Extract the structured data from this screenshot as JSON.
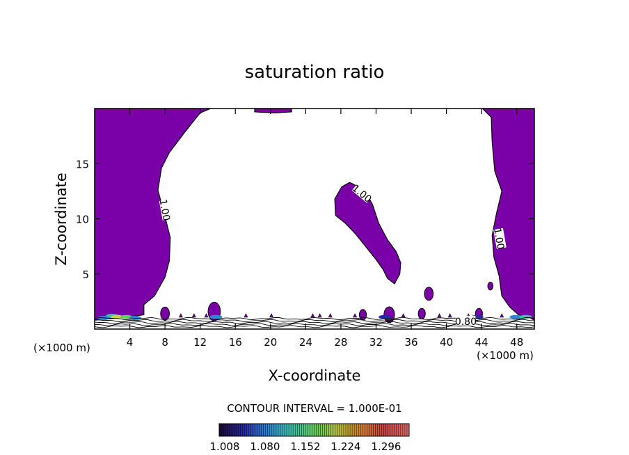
{
  "chart_data": {
    "type": "contour",
    "title": "saturation ratio",
    "xlabel": "X-coordinate",
    "ylabel": "Z-coordinate",
    "x_unit_left": "(×1000 m)",
    "x_unit_right": "(×1000 m)",
    "xlim": [
      0,
      50
    ],
    "ylim": [
      0,
      20
    ],
    "x_ticks": [
      4,
      8,
      12,
      16,
      20,
      24,
      28,
      32,
      36,
      40,
      44,
      48
    ],
    "y_ticks": [
      5,
      10,
      15
    ],
    "contour_labels": [
      {
        "text": "1.00",
        "x": 8.0,
        "y": 10.8
      },
      {
        "text": "1.00",
        "x": 30.4,
        "y": 12.3
      },
      {
        "text": "1.00",
        "x": 46.0,
        "y": 8.2
      },
      {
        "text": "0.80",
        "x": 42.2,
        "y": 0.7
      }
    ],
    "contour_interval_text": "CONTOUR INTERVAL = 1.000E-01",
    "colorbar": {
      "tick_labels": [
        "1.008",
        "1.080",
        "1.152",
        "1.224",
        "1.296"
      ],
      "colors": [
        "#1a0a3a",
        "#2a2aa0",
        "#2e86d6",
        "#3fc0b0",
        "#5fd060",
        "#b8c040",
        "#d08030",
        "#c84040",
        "#e07070"
      ]
    },
    "fill_color": "#7a00a8",
    "supersaturated_regions": [
      {
        "name": "left",
        "points": [
          [
            0,
            0.8
          ],
          [
            0,
            20
          ],
          [
            13.2,
            20
          ],
          [
            12,
            19.6
          ],
          [
            10.2,
            17.8
          ],
          [
            8.5,
            16
          ],
          [
            7.6,
            14.6
          ],
          [
            7.2,
            12.6
          ],
          [
            7.9,
            10.5
          ],
          [
            8.6,
            8.3
          ],
          [
            8.5,
            6.2
          ],
          [
            8,
            4.7
          ],
          [
            6.8,
            3
          ],
          [
            5.6,
            2.2
          ],
          [
            5.6,
            1.3
          ],
          [
            4,
            1.1
          ]
        ]
      },
      {
        "name": "right",
        "points": [
          [
            50,
            0.8
          ],
          [
            50,
            20
          ],
          [
            44.1,
            20
          ],
          [
            45.1,
            19.2
          ],
          [
            45.2,
            17
          ],
          [
            45.5,
            14.3
          ],
          [
            46.3,
            12.5
          ],
          [
            45.7,
            10.5
          ],
          [
            45.2,
            8.5
          ],
          [
            45.4,
            6.5
          ],
          [
            46,
            4.8
          ],
          [
            46.3,
            3
          ],
          [
            47.2,
            2
          ],
          [
            48.2,
            1.3
          ],
          [
            49.3,
            1.1
          ]
        ]
      },
      {
        "name": "center",
        "points": [
          [
            30,
            12.9
          ],
          [
            30.9,
            12.3
          ],
          [
            31.6,
            11.3
          ],
          [
            32.3,
            9.6
          ],
          [
            33.3,
            8.1
          ],
          [
            34.3,
            7
          ],
          [
            34.8,
            6
          ],
          [
            34.7,
            5
          ],
          [
            34.1,
            4.1
          ],
          [
            33.3,
            4.6
          ],
          [
            32.8,
            5.4
          ],
          [
            32,
            6.3
          ],
          [
            31,
            7.3
          ],
          [
            29.7,
            8.6
          ],
          [
            28.5,
            9.6
          ],
          [
            27.4,
            10.3
          ],
          [
            27.3,
            11.8
          ],
          [
            28.1,
            12.9
          ],
          [
            29,
            13.3
          ]
        ]
      },
      {
        "name": "top-strip",
        "points": [
          [
            18.2,
            20
          ],
          [
            18.2,
            19.7
          ],
          [
            20.5,
            19.6
          ],
          [
            22.4,
            19.7
          ],
          [
            22.4,
            20
          ]
        ]
      }
    ],
    "blobs": [
      {
        "x": 8.0,
        "y": 1.4,
        "r": 0.5
      },
      {
        "x": 13.6,
        "y": 1.6,
        "r": 0.7
      },
      {
        "x": 33.5,
        "y": 1.3,
        "r": 0.6
      },
      {
        "x": 38.0,
        "y": 3.2,
        "r": 0.5
      },
      {
        "x": 37.2,
        "y": 1.4,
        "r": 0.4
      },
      {
        "x": 43.7,
        "y": 1.4,
        "r": 0.4
      },
      {
        "x": 45.0,
        "y": 3.9,
        "r": 0.3
      },
      {
        "x": 30.5,
        "y": 1.3,
        "r": 0.4
      }
    ]
  }
}
